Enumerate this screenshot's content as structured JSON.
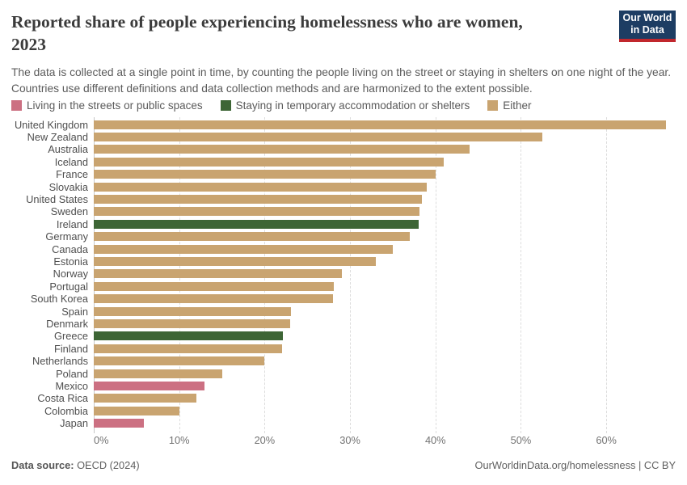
{
  "header": {
    "title_line1": "Reported share of people experiencing homelessness who are women,",
    "title_line2": "2023",
    "subtitle": "The data is collected at a single point in time, by counting the people living on the street or staying in shelters on one night of the year. Countries use different definitions and data collection methods and are harmonized to the extent possible.",
    "logo": {
      "line1": "Our World",
      "line2": "in Data",
      "bg_color": "#1d3d63",
      "accent_color": "#c1272d"
    }
  },
  "legend": {
    "items": [
      {
        "key": "streets",
        "label": "Living in the streets or public spaces",
        "color": "#cc7082"
      },
      {
        "key": "shelters",
        "label": "Staying in temporary accommodation or shelters",
        "color": "#3d6535"
      },
      {
        "key": "either",
        "label": "Either",
        "color": "#c9a470"
      }
    ]
  },
  "chart_data": {
    "type": "bar",
    "orientation": "horizontal",
    "title": "Reported share of people experiencing homelessness who are women, 2023",
    "xlabel": "",
    "ylabel": "",
    "x_ticks": [
      0,
      10,
      20,
      30,
      40,
      50,
      60
    ],
    "x_tick_suffix": "%",
    "xmax": 67.65,
    "grid": true,
    "unit": "%",
    "categories_legend": {
      "streets": "Living in the streets or public spaces",
      "shelters": "Staying in temporary accommodation or shelters",
      "either": "Either"
    },
    "rows": [
      {
        "country": "United Kingdom",
        "value": 67,
        "category": "either"
      },
      {
        "country": "New Zealand",
        "value": 52.5,
        "category": "either"
      },
      {
        "country": "Australia",
        "value": 44,
        "category": "either"
      },
      {
        "country": "Iceland",
        "value": 41,
        "category": "either"
      },
      {
        "country": "France",
        "value": 40,
        "category": "either"
      },
      {
        "country": "Slovakia",
        "value": 39,
        "category": "either"
      },
      {
        "country": "United States",
        "value": 38.4,
        "category": "either"
      },
      {
        "country": "Sweden",
        "value": 38.1,
        "category": "either"
      },
      {
        "country": "Ireland",
        "value": 38,
        "category": "shelters"
      },
      {
        "country": "Germany",
        "value": 37,
        "category": "either"
      },
      {
        "country": "Canada",
        "value": 35,
        "category": "either"
      },
      {
        "country": "Estonia",
        "value": 33,
        "category": "either"
      },
      {
        "country": "Norway",
        "value": 29,
        "category": "either"
      },
      {
        "country": "Portugal",
        "value": 28.1,
        "category": "either"
      },
      {
        "country": "South Korea",
        "value": 28,
        "category": "either"
      },
      {
        "country": "Spain",
        "value": 23.1,
        "category": "either"
      },
      {
        "country": "Denmark",
        "value": 23,
        "category": "either"
      },
      {
        "country": "Greece",
        "value": 22.1,
        "category": "shelters"
      },
      {
        "country": "Finland",
        "value": 22,
        "category": "either"
      },
      {
        "country": "Netherlands",
        "value": 20,
        "category": "either"
      },
      {
        "country": "Poland",
        "value": 15,
        "category": "either"
      },
      {
        "country": "Mexico",
        "value": 13,
        "category": "streets"
      },
      {
        "country": "Costa Rica",
        "value": 12,
        "category": "either"
      },
      {
        "country": "Colombia",
        "value": 10,
        "category": "either"
      },
      {
        "country": "Japan",
        "value": 5.9,
        "category": "streets"
      }
    ]
  },
  "footer": {
    "source_label": "Data source:",
    "source_value": " OECD (2024)",
    "link": "OurWorldinData.org/homelessness | CC BY"
  }
}
